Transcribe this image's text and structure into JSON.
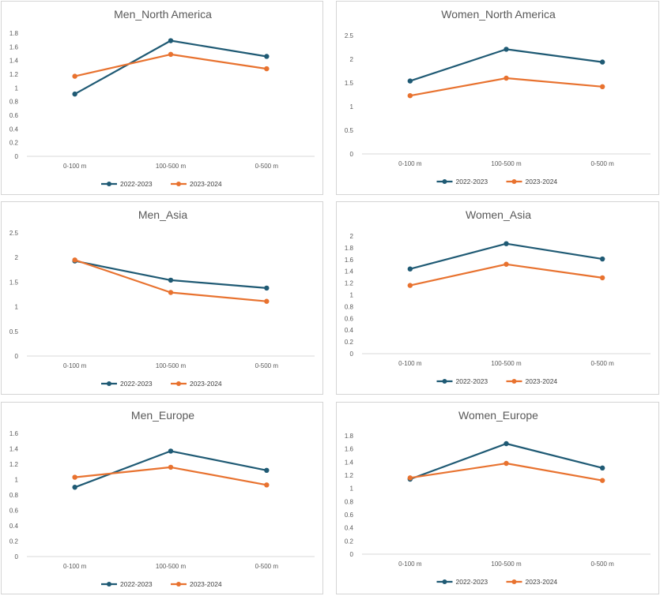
{
  "colors": {
    "s1": "#1f5a74",
    "s2": "#e8722f",
    "axis": "#d9d9d9",
    "text": "#595959"
  },
  "chart_data": [
    {
      "type": "line",
      "title": "Men_North America",
      "categories": [
        "0-100 m",
        "100-500 m",
        "0-500 m"
      ],
      "ylim": [
        0,
        1.8
      ],
      "yticks": [
        "0",
        "0.2",
        "0.4",
        "0.6",
        "0.8",
        "1",
        "1.2",
        "1.4",
        "1.6",
        "1.8"
      ],
      "grid": false,
      "legend_position": "bottom",
      "series": [
        {
          "name": "2022-2023",
          "values": [
            0.91,
            1.69,
            1.46
          ]
        },
        {
          "name": "2023-2024",
          "values": [
            1.17,
            1.49,
            1.28
          ]
        }
      ]
    },
    {
      "type": "line",
      "title": "Women_North America",
      "categories": [
        "0-100 m",
        "100-500 m",
        "0-500 m"
      ],
      "ylim": [
        0,
        2.5
      ],
      "yticks": [
        "0",
        "0.5",
        "1",
        "1.5",
        "2",
        "2.5"
      ],
      "grid": false,
      "legend_position": "bottom",
      "series": [
        {
          "name": "2022-2023",
          "values": [
            1.54,
            2.21,
            1.94
          ]
        },
        {
          "name": "2023-2024",
          "values": [
            1.23,
            1.6,
            1.42
          ]
        }
      ]
    },
    {
      "type": "line",
      "title": "Men_Asia",
      "categories": [
        "0-100 m",
        "100-500 m",
        "0-500 m"
      ],
      "ylim": [
        0,
        2.5
      ],
      "yticks": [
        "0",
        "0.5",
        "1",
        "1.5",
        "2",
        "2.5"
      ],
      "grid": false,
      "legend_position": "bottom",
      "series": [
        {
          "name": "2022-2023",
          "values": [
            1.93,
            1.54,
            1.38
          ]
        },
        {
          "name": "2023-2024",
          "values": [
            1.95,
            1.29,
            1.11
          ]
        }
      ]
    },
    {
      "type": "line",
      "title": "Women_Asia",
      "categories": [
        "0-100 m",
        "100-500 m",
        "0-500 m"
      ],
      "ylim": [
        0,
        2
      ],
      "yticks": [
        "0",
        "0.2",
        "0.4",
        "0.6",
        "0.8",
        "1",
        "1.2",
        "1.4",
        "1.6",
        "1.8",
        "2"
      ],
      "grid": false,
      "legend_position": "bottom",
      "series": [
        {
          "name": "2022-2023",
          "values": [
            1.44,
            1.87,
            1.61
          ]
        },
        {
          "name": "2023-2024",
          "values": [
            1.16,
            1.52,
            1.29
          ]
        }
      ]
    },
    {
      "type": "line",
      "title": "Men_Europe",
      "categories": [
        "0-100 m",
        "100-500 m",
        "0-500 m"
      ],
      "ylim": [
        0,
        1.6
      ],
      "yticks": [
        "0",
        "0.2",
        "0.4",
        "0.6",
        "0.8",
        "1",
        "1.2",
        "1.4",
        "1.6"
      ],
      "grid": false,
      "legend_position": "bottom",
      "series": [
        {
          "name": "2022-2023",
          "values": [
            0.9,
            1.37,
            1.12
          ]
        },
        {
          "name": "2023-2024",
          "values": [
            1.03,
            1.16,
            0.93
          ]
        }
      ]
    },
    {
      "type": "line",
      "title": "Women_Europe",
      "categories": [
        "0-100 m",
        "100-500 m",
        "0-500 m"
      ],
      "ylim": [
        0,
        1.8
      ],
      "yticks": [
        "0",
        "0.2",
        "0.4",
        "0.6",
        "0.8",
        "1",
        "1.2",
        "1.4",
        "1.6",
        "1.8"
      ],
      "grid": false,
      "legend_position": "bottom",
      "series": [
        {
          "name": "2022-2023",
          "values": [
            1.14,
            1.68,
            1.31
          ]
        },
        {
          "name": "2023-2024",
          "values": [
            1.16,
            1.38,
            1.12
          ]
        }
      ]
    }
  ]
}
